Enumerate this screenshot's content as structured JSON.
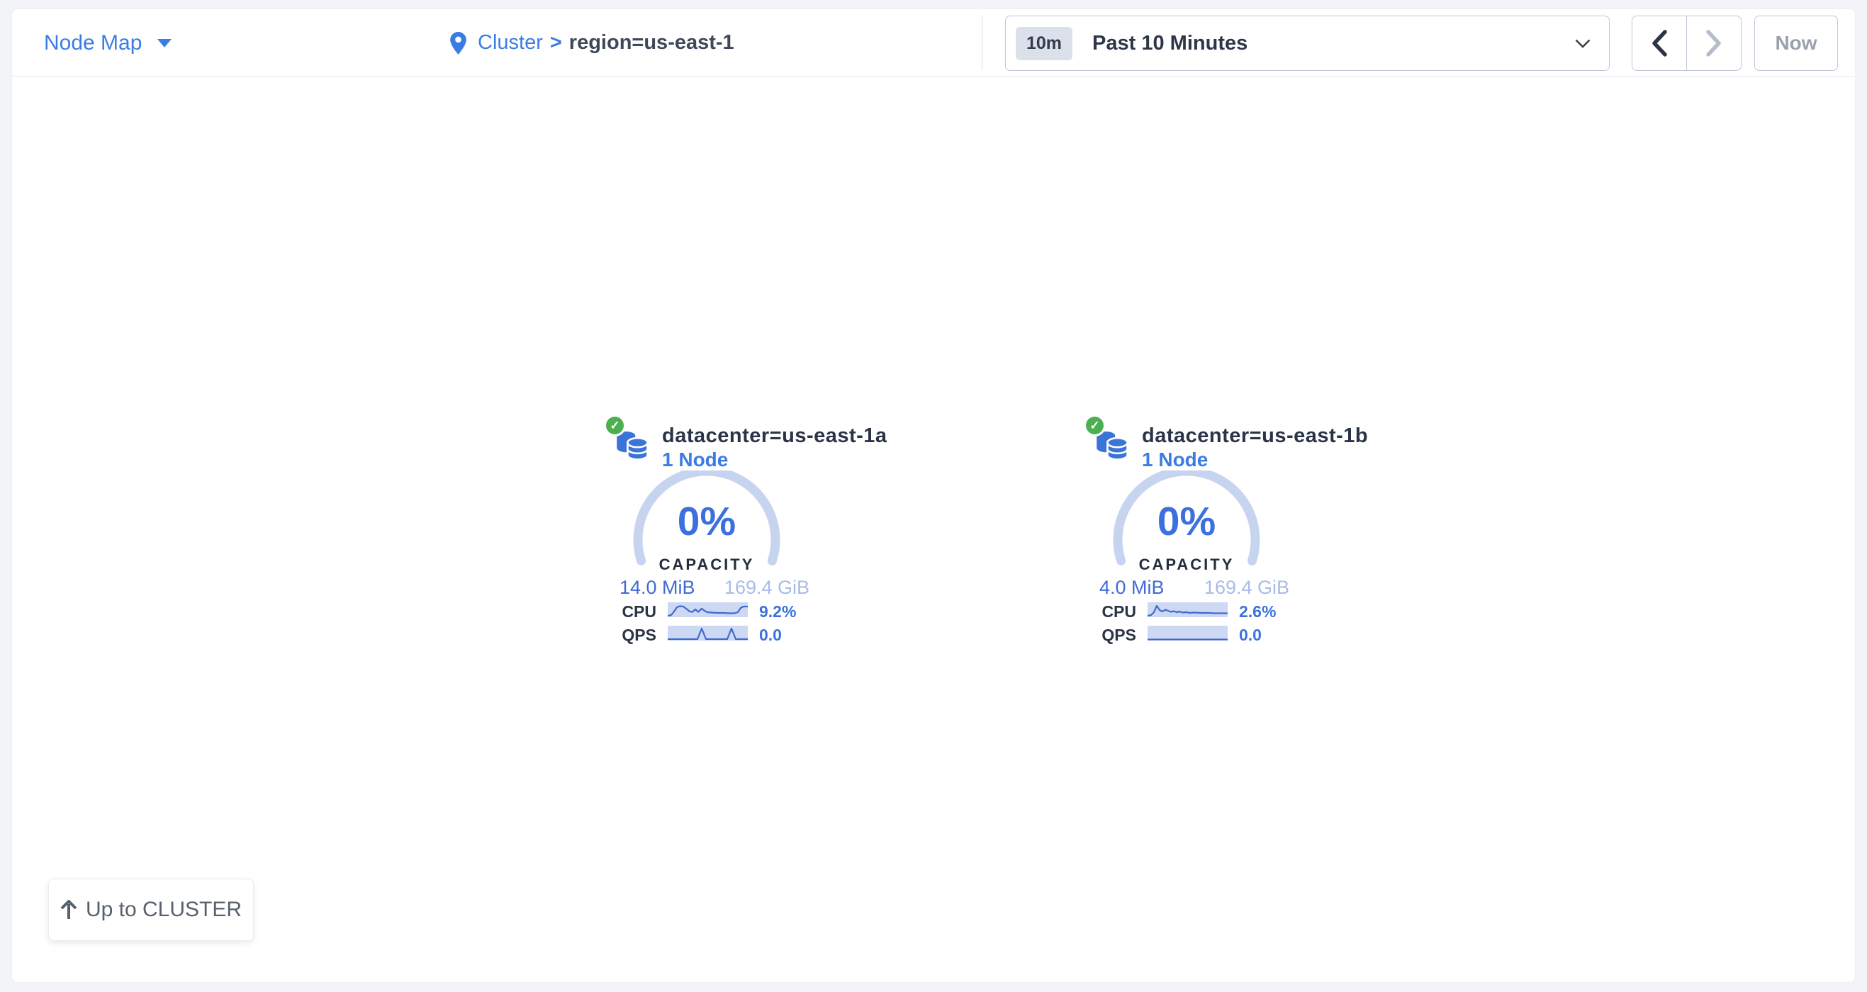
{
  "colors": {
    "accent_blue": "#3b7ce4",
    "gauge_blue": "#3c70dc",
    "arc_pale": "#c7d4f0",
    "navy": "#2b3447",
    "green_ok": "#4caf50",
    "spark_bg": "#cdd8f2",
    "spark_line": "#3f6ace",
    "disabled_gray": "#9aa1ad"
  },
  "header": {
    "nav": {
      "label": "Node Map"
    },
    "breadcrumb": {
      "cluster": "Cluster",
      "separator": ">",
      "current": "region=us-east-1"
    },
    "time": {
      "badge": "10m",
      "range": "Past 10 Minutes",
      "now": "Now"
    }
  },
  "localities": [
    {
      "status": "healthy",
      "title": "datacenter=us-east-1a",
      "subtitle": "1 Node",
      "capacity_percent": "0%",
      "capacity_label": "CAPACITY",
      "capacity_used": "14.0 MiB",
      "capacity_total": "169.4 GiB",
      "metrics": [
        {
          "label": "CPU",
          "value": "9.2%",
          "points": [
            [
              0,
              19
            ],
            [
              5,
              18
            ],
            [
              9,
              13
            ],
            [
              13,
              7
            ],
            [
              17,
              5.5
            ],
            [
              22,
              6
            ],
            [
              26,
              9
            ],
            [
              31,
              13
            ],
            [
              35,
              13.5
            ],
            [
              39,
              10
            ],
            [
              43,
              13.5
            ],
            [
              48,
              9
            ],
            [
              52,
              12
            ],
            [
              56,
              14
            ],
            [
              62,
              14.5
            ],
            [
              70,
              15
            ],
            [
              78,
              15
            ],
            [
              86,
              15.5
            ],
            [
              94,
              15.5
            ],
            [
              99,
              14
            ],
            [
              103,
              8
            ],
            [
              107,
              6
            ],
            [
              113,
              6
            ]
          ]
        },
        {
          "label": "QPS",
          "value": "0.0",
          "points": [
            [
              0,
              19
            ],
            [
              42,
              19
            ],
            [
              48,
              4
            ],
            [
              54,
              19
            ],
            [
              84,
              19
            ],
            [
              90,
              4
            ],
            [
              96,
              19
            ],
            [
              113,
              19
            ]
          ]
        }
      ]
    },
    {
      "status": "healthy",
      "title": "datacenter=us-east-1b",
      "subtitle": "1 Node",
      "capacity_percent": "0%",
      "capacity_label": "CAPACITY",
      "capacity_used": "4.0 MiB",
      "capacity_total": "169.4 GiB",
      "metrics": [
        {
          "label": "CPU",
          "value": "2.6%",
          "points": [
            [
              0,
              19
            ],
            [
              5,
              18
            ],
            [
              9,
              14
            ],
            [
              13,
              5
            ],
            [
              17,
              11
            ],
            [
              21,
              13
            ],
            [
              25,
              10.5
            ],
            [
              29,
              12
            ],
            [
              33,
              13.5
            ],
            [
              37,
              12.5
            ],
            [
              41,
              14
            ],
            [
              45,
              13
            ],
            [
              49,
              14.5
            ],
            [
              55,
              14
            ],
            [
              60,
              15
            ],
            [
              66,
              14.5
            ],
            [
              75,
              15
            ],
            [
              85,
              15
            ],
            [
              95,
              15.5
            ],
            [
              113,
              15.5
            ]
          ]
        },
        {
          "label": "QPS",
          "value": "0.0",
          "points": [
            [
              0,
              19.5
            ],
            [
              113,
              19.5
            ]
          ]
        }
      ]
    }
  ],
  "footer": {
    "up_label": "Up to CLUSTER"
  },
  "status_glyph": "✓"
}
